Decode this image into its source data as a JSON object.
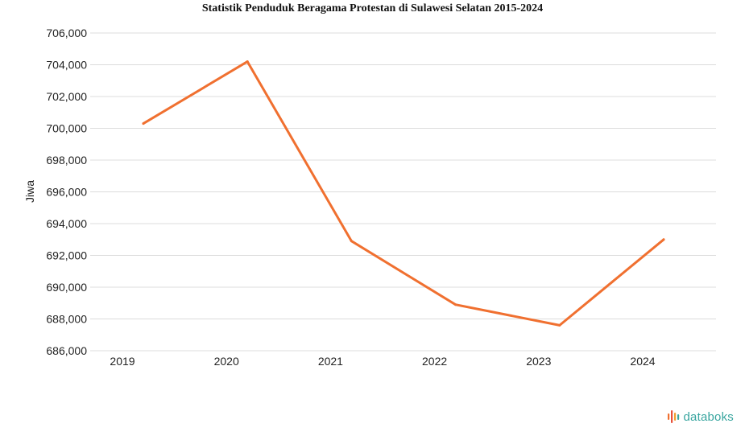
{
  "chart_data": {
    "type": "line",
    "title": "Statistik Penduduk Beragama Protestan di Sulawesi Selatan 2015-2024",
    "ylabel": "Jiwa",
    "xlabel": "",
    "categories": [
      "2019",
      "2020",
      "2021",
      "2022",
      "2023",
      "2024"
    ],
    "series": [
      {
        "values": [
          700300,
          704200,
          692900,
          688900,
          687600,
          693000
        ],
        "color": "#f07030"
      }
    ],
    "ylim": [
      686000,
      706000
    ],
    "yticks": [
      686000,
      688000,
      690000,
      692000,
      694000,
      696000,
      698000,
      700000,
      702000,
      704000,
      706000
    ],
    "ytick_labels": [
      "686,000",
      "688,000",
      "690,000",
      "692,000",
      "694,000",
      "696,000",
      "698,000",
      "700,000",
      "702,000",
      "704,000",
      "706,000"
    ],
    "grid": true,
    "legend": "none"
  },
  "brand": {
    "name": "databoks",
    "color": "#3aa6a0"
  }
}
